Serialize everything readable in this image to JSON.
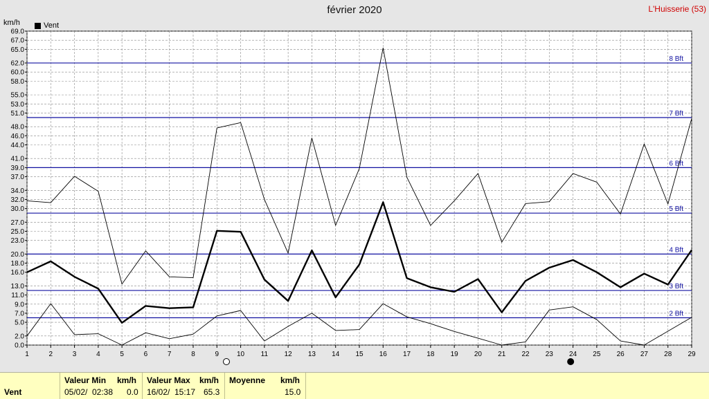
{
  "header": {
    "title": "février 2020",
    "station": "L'Huisserie (53)"
  },
  "colors": {
    "series": "#000000",
    "beaufort": "#1010a0",
    "grid": "#888888",
    "plot_bg": "#ffffff",
    "page_bg": "#e6e6e6",
    "stats_bg": "#ffffc0",
    "station": "#d00000"
  },
  "chart_data": {
    "type": "line",
    "title": "février 2020",
    "ylabel": "km/h",
    "xlabel": "",
    "legend": {
      "position": "top-left",
      "entries": [
        "Vent"
      ]
    },
    "grid": true,
    "xlim": [
      1,
      29
    ],
    "ylim": [
      0,
      69
    ],
    "x_ticks": [
      1,
      2,
      3,
      4,
      5,
      6,
      7,
      8,
      9,
      10,
      11,
      12,
      13,
      14,
      15,
      16,
      17,
      18,
      19,
      20,
      21,
      22,
      23,
      24,
      25,
      26,
      27,
      28,
      29
    ],
    "y_ticks": [
      0.0,
      2.0,
      5.0,
      7.0,
      9.0,
      11.0,
      13.0,
      16.0,
      18.0,
      20.0,
      23.0,
      25.0,
      27.0,
      30.0,
      32.0,
      34.0,
      37.0,
      39.0,
      41.0,
      44.0,
      46.0,
      48.0,
      51.0,
      53.0,
      55.0,
      58.0,
      60.0,
      62.0,
      65.0,
      67.0,
      69.0
    ],
    "y_tick_labels": [
      "0.0",
      "2.0",
      "5.0",
      "7.0",
      "9.0",
      "11.0",
      "13.0",
      "16.0",
      "18.0",
      "20.0",
      "23.0",
      "25.0",
      "27.0",
      "30.0",
      "32.0",
      "34.0",
      "37.0",
      "39.0",
      "41.0",
      "44.0",
      "46.0",
      "48.0",
      "51.0",
      "53.0",
      "55.0",
      "58.0",
      "60.0",
      "62.0",
      "65.0",
      "67.0",
      "69.0"
    ],
    "beaufort_lines": [
      {
        "label": "2 Bft",
        "value": 6
      },
      {
        "label": "3 Bft",
        "value": 12
      },
      {
        "label": "4 Bft",
        "value": 20
      },
      {
        "label": "5 Bft",
        "value": 29
      },
      {
        "label": "6 Bft",
        "value": 39
      },
      {
        "label": "7 Bft",
        "value": 50
      },
      {
        "label": "8 Bft",
        "value": 62
      }
    ],
    "x": [
      1,
      2,
      3,
      4,
      5,
      6,
      7,
      8,
      9,
      10,
      11,
      12,
      13,
      14,
      15,
      16,
      17,
      18,
      19,
      20,
      21,
      22,
      23,
      24,
      25,
      26,
      27,
      28,
      29
    ],
    "series": [
      {
        "name": "Vent",
        "role": "mean",
        "values": [
          16.0,
          18.4,
          15.0,
          12.4,
          4.9,
          8.6,
          8.1,
          8.3,
          25.1,
          24.9,
          14.4,
          9.7,
          20.8,
          10.5,
          17.7,
          31.4,
          14.7,
          12.7,
          11.7,
          14.5,
          7.2,
          14.1,
          17.0,
          18.7,
          16.0,
          12.7,
          15.7,
          13.3,
          20.9
        ]
      },
      {
        "name": "",
        "role": "max",
        "values": [
          31.7,
          31.3,
          37.1,
          33.8,
          13.4,
          20.7,
          15.0,
          14.8,
          47.7,
          48.9,
          32.0,
          20.2,
          45.5,
          26.3,
          38.8,
          65.3,
          36.9,
          26.3,
          31.7,
          37.7,
          22.6,
          31.1,
          31.5,
          37.7,
          35.8,
          28.8,
          44.2,
          31.0,
          49.8
        ]
      },
      {
        "name": "",
        "role": "min",
        "values": [
          2.0,
          9.1,
          2.3,
          2.5,
          0.0,
          2.7,
          1.4,
          2.4,
          6.4,
          7.6,
          0.9,
          4.1,
          7.0,
          3.2,
          3.4,
          9.1,
          6.2,
          4.7,
          3.0,
          1.5,
          0.0,
          0.7,
          7.7,
          8.4,
          5.6,
          0.9,
          0.0,
          null,
          6.1
        ]
      }
    ],
    "moon_markers": [
      {
        "phase": "full-moon",
        "day": 9.4
      },
      {
        "phase": "new-moon",
        "day": 23.9
      }
    ]
  },
  "stats": {
    "row_label": "Vent",
    "min": {
      "header": "Valeur Min",
      "unit": "km/h",
      "date": "05/02/",
      "time": "02:38",
      "value": "0.0"
    },
    "max": {
      "header": "Valeur Max",
      "unit": "km/h",
      "date": "16/02/",
      "time": "15:17",
      "value": "65.3"
    },
    "mean": {
      "header": "Moyenne",
      "unit": "km/h",
      "value": "15.0"
    }
  }
}
